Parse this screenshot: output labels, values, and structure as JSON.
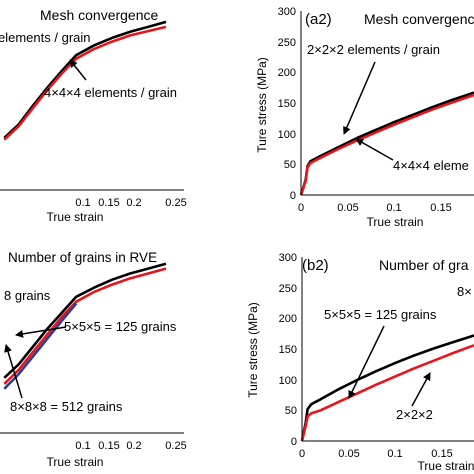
{
  "colors": {
    "black": "#000000",
    "red": "#e8141b",
    "blue": "#2c3e9a"
  },
  "chart_data": [
    {
      "type": "line",
      "title": "Mesh convergence",
      "xlabel": "True strain",
      "ylabel": "",
      "xlim": [
        -0.006,
        0.25
      ],
      "ylim": [
        0,
        300
      ],
      "xticks": [
        "0.1",
        "0.15",
        "0.2",
        "0.25"
      ],
      "series": [
        {
          "name": "2×2×2 elements / grain",
          "color": "black",
          "x": [
            0,
            0.02,
            0.04,
            0.06,
            0.08,
            0.1,
            0.125,
            0.15,
            0.175,
            0.2,
            0.225
          ],
          "y": [
            85,
            107,
            138,
            167,
            194,
            220,
            236,
            248,
            258,
            266,
            274
          ]
        },
        {
          "name": "4×4×4 elements / grain",
          "color": "red",
          "x": [
            0,
            0.02,
            0.04,
            0.06,
            0.08,
            0.1,
            0.125,
            0.15,
            0.175,
            0.2,
            0.225
          ],
          "y": [
            82,
            104,
            134,
            163,
            190,
            214,
            230,
            242,
            252,
            259,
            266
          ]
        }
      ],
      "annotations": [
        "elements / grain",
        "4×4×4 elements / grain"
      ]
    },
    {
      "type": "line",
      "title": "Mesh convergence",
      "panel_label": "(a2)",
      "xlabel": "True strain",
      "ylabel": "Ture stress (MPa)",
      "xlim": [
        0,
        0.185
      ],
      "ylim": [
        0,
        300
      ],
      "xticks": [
        "0",
        "0.05",
        "0.1",
        "0.15"
      ],
      "yticks": [
        "0",
        "50",
        "100",
        "150",
        "200",
        "250",
        "300"
      ],
      "series": [
        {
          "name": "2×2×2 elements / grain",
          "color": "black",
          "x": [
            0,
            0.005,
            0.007,
            0.01,
            0.02,
            0.04,
            0.06,
            0.08,
            0.1,
            0.12,
            0.14,
            0.16,
            0.185
          ],
          "y": [
            0,
            25,
            47,
            55,
            63,
            78,
            93,
            106,
            119,
            131,
            143,
            154,
            167
          ]
        },
        {
          "name": "4×4×4 elements / grain",
          "color": "red",
          "x": [
            0,
            0.005,
            0.007,
            0.01,
            0.02,
            0.04,
            0.06,
            0.08,
            0.1,
            0.12,
            0.14,
            0.16,
            0.185
          ],
          "y": [
            0,
            23,
            45,
            52,
            60,
            75,
            89,
            102,
            115,
            127,
            139,
            150,
            163
          ]
        }
      ],
      "annotations": [
        "2×2×2 elements / grain",
        "4×4×4 eleme"
      ]
    },
    {
      "type": "line",
      "title": "Number of grains in RVE",
      "xlabel": "True strain",
      "ylabel": "",
      "xlim": [
        -0.006,
        0.25
      ],
      "ylim": [
        0,
        300
      ],
      "xticks": [
        "0.1",
        "0.15",
        "0.2",
        "0.25"
      ],
      "series": [
        {
          "name": "8 grains",
          "color": "black",
          "x": [
            0,
            0.02,
            0.04,
            0.06,
            0.08,
            0.1,
            0.125,
            0.15,
            0.175,
            0.2,
            0.225
          ],
          "y": [
            90,
            112,
            141,
            170,
            196,
            222,
            237,
            250,
            260,
            268,
            276
          ]
        },
        {
          "name": "5×5×5 = 125 grains",
          "color": "red",
          "x": [
            0,
            0.02,
            0.04,
            0.06,
            0.08,
            0.1,
            0.125,
            0.15,
            0.175,
            0.2,
            0.225
          ],
          "y": [
            80,
            103,
            132,
            161,
            189,
            214,
            230,
            242,
            252,
            260,
            268
          ]
        },
        {
          "name": "8×8×8 = 512 grains",
          "color": "blue",
          "x": [
            0,
            0.02,
            0.04,
            0.06,
            0.08,
            0.1
          ],
          "y": [
            72,
            96,
            125,
            154,
            183,
            211
          ]
        }
      ],
      "annotations": [
        "8 grains",
        "5×5×5 = 125 grains",
        "8×8×8 = 512 grains"
      ]
    },
    {
      "type": "line",
      "title": "Number of gra",
      "panel_label": "(b2)",
      "xlabel": "True strain",
      "ylabel": "Ture stress (MPa)",
      "xlim": [
        0,
        0.185
      ],
      "ylim": [
        0,
        300
      ],
      "xticks": [
        "0",
        "0.05",
        "0.1",
        "0.15"
      ],
      "yticks": [
        "0",
        "50",
        "100",
        "150",
        "200",
        "250",
        "300"
      ],
      "series": [
        {
          "name": "5×5×5 = 125 grains",
          "color": "black",
          "x": [
            0,
            0.004,
            0.006,
            0.01,
            0.02,
            0.04,
            0.06,
            0.08,
            0.1,
            0.12,
            0.14,
            0.16,
            0.185
          ],
          "y": [
            0,
            30,
            52,
            60,
            68,
            85,
            100,
            114,
            127,
            139,
            150,
            160,
            172
          ]
        },
        {
          "name": "2×2×2",
          "color": "red",
          "x": [
            0,
            0.004,
            0.006,
            0.01,
            0.02,
            0.04,
            0.06,
            0.08,
            0.1,
            0.12,
            0.14,
            0.16,
            0.185
          ],
          "y": [
            0,
            25,
            40,
            45,
            50,
            64,
            78,
            92,
            105,
            118,
            130,
            142,
            156
          ]
        }
      ],
      "annotations": [
        "5×5×5 = 125 grains",
        "2×2×2",
        "8×"
      ]
    }
  ]
}
